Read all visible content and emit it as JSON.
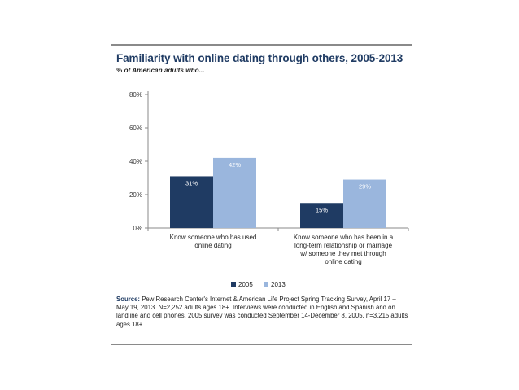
{
  "chart_data": {
    "type": "bar",
    "title": "Familiarity with online dating through others, 2005-2013",
    "subtitle": "% of American adults who...",
    "categories": [
      [
        "Know someone who has used",
        "online dating"
      ],
      [
        "Know someone who has been in a",
        "long-term relationship or marriage",
        "w/ someone they met through",
        "online dating"
      ]
    ],
    "series": [
      {
        "name": "2005",
        "values": [
          31,
          15
        ],
        "labels": [
          "31%",
          "15%"
        ],
        "color": "#1f3b63",
        "label_color": "#ffffff"
      },
      {
        "name": "2013",
        "values": [
          42,
          29
        ],
        "labels": [
          "42%",
          "29%"
        ],
        "color": "#9ab6dd",
        "label_color": "#ffffff"
      }
    ],
    "ylim": [
      0,
      80
    ],
    "yticks": [
      0,
      20,
      40,
      60,
      80
    ],
    "ytick_labels": [
      "0%",
      "20%",
      "40%",
      "60%",
      "80%"
    ],
    "grid": false,
    "legend_position": "bottom-center"
  },
  "source": {
    "label": "Source:",
    "text": " Pew Research Center's Internet & American Life Project Spring Tracking Survey, April 17 – May 19, 2013. N=2,252 adults ages 18+. Interviews were conducted in English and Spanish and on landline and cell phones.  2005 survey was conducted September 14-December 8, 2005, n=3,215 adults ages 18+."
  }
}
